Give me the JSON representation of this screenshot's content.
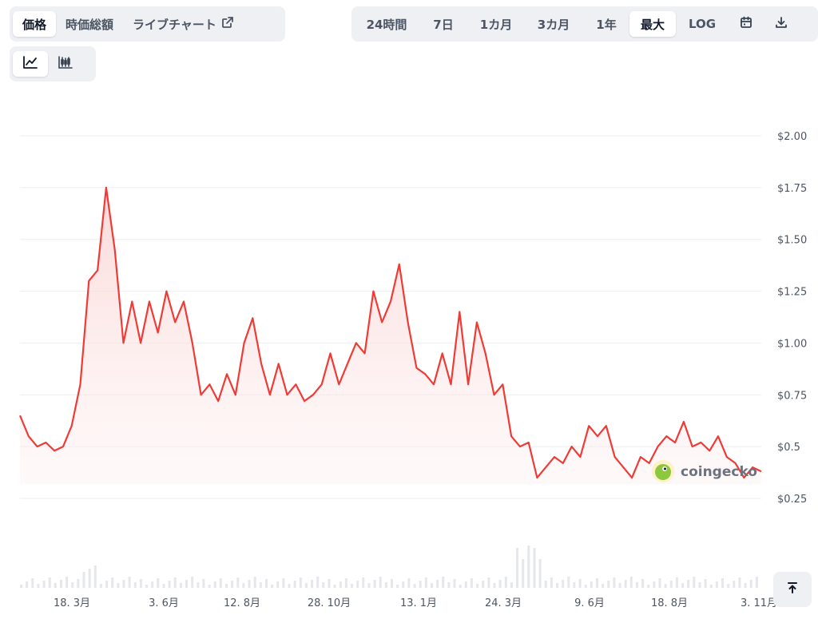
{
  "toolbar": {
    "metric_tabs": [
      {
        "label": "価格",
        "active": true
      },
      {
        "label": "時価総額",
        "active": false
      },
      {
        "label": "ライブチャート",
        "active": false
      }
    ],
    "range_tabs": [
      {
        "label": "24時間",
        "active": false
      },
      {
        "label": "7日",
        "active": false
      },
      {
        "label": "1カ月",
        "active": false
      },
      {
        "label": "3カ月",
        "active": false
      },
      {
        "label": "1年",
        "active": false
      },
      {
        "label": "最大",
        "active": true
      },
      {
        "label": "LOG",
        "active": false
      }
    ],
    "icons": [
      "external-link-icon",
      "calendar-icon",
      "download-icon",
      "line-chart-icon",
      "candlestick-icon",
      "arrow-up-to-top-icon"
    ]
  },
  "watermark": "coingecko",
  "colors": {
    "line": "#ef3b36",
    "fill": "#fde2e2",
    "grid": "#eceef1",
    "volume": "#e5e7eb"
  },
  "chart_data": {
    "type": "area",
    "x_tick_labels": [
      "18. 3月",
      "3. 6月",
      "12. 8月",
      "28. 10月",
      "13. 1月",
      "24. 3月",
      "9. 6月",
      "18. 8月",
      "3. 11月"
    ],
    "y_tick_labels": [
      "$2.00",
      "$1.75",
      "$1.50",
      "$1.25",
      "$1.00",
      "$0.75",
      "$0.5",
      "$0.25"
    ],
    "y_ticks": [
      2.0,
      1.75,
      1.5,
      1.25,
      1.0,
      0.75,
      0.5,
      0.25
    ],
    "ylim": [
      0.25,
      2.0
    ],
    "grid": true,
    "series": [
      {
        "values": [
          0.65,
          0.55,
          0.5,
          0.52,
          0.48,
          0.5,
          0.6,
          0.8,
          1.3,
          1.35,
          1.75,
          1.45,
          1.0,
          1.2,
          1.0,
          1.2,
          1.05,
          1.25,
          1.1,
          1.2,
          1.0,
          0.75,
          0.8,
          0.72,
          0.85,
          0.75,
          1.0,
          1.12,
          0.9,
          0.75,
          0.9,
          0.75,
          0.8,
          0.72,
          0.75,
          0.8,
          0.95,
          0.8,
          0.9,
          1.0,
          0.95,
          1.25,
          1.1,
          1.2,
          1.38,
          1.1,
          0.88,
          0.85,
          0.8,
          0.95,
          0.8,
          1.15,
          0.8,
          1.1,
          0.95,
          0.75,
          0.8,
          0.55,
          0.5,
          0.52,
          0.35,
          0.4,
          0.45,
          0.42,
          0.5,
          0.45,
          0.6,
          0.55,
          0.6,
          0.45,
          0.4,
          0.35,
          0.45,
          0.42,
          0.5,
          0.55,
          0.52,
          0.62,
          0.5,
          0.52,
          0.48,
          0.55,
          0.45,
          0.42,
          0.35,
          0.4,
          0.38
        ]
      }
    ]
  }
}
